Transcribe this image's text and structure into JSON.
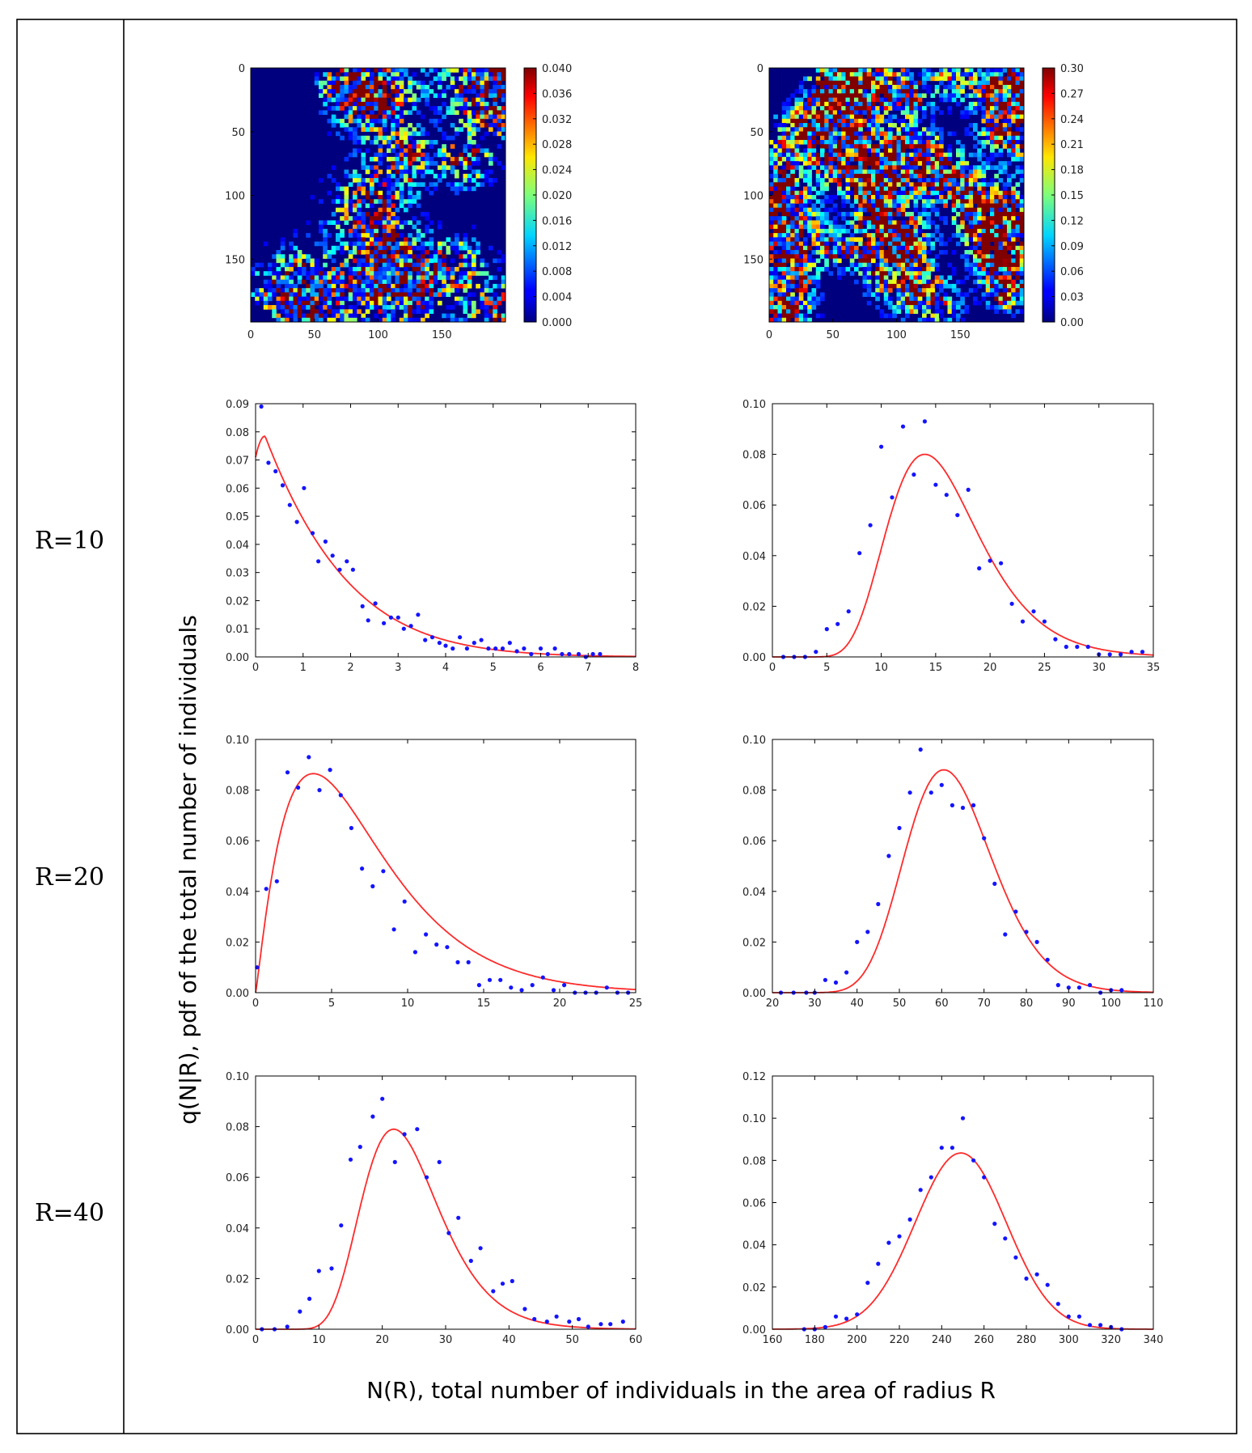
{
  "figure": {
    "ylabel": "q(N|R), pdf of the total number of individuals",
    "xlabel": "N(R), total number of individuals in the area of radius R",
    "row_labels": [
      "R=10",
      "R=20",
      "R=40"
    ]
  },
  "colors": {
    "fit_line": "#ff2a2a",
    "points": "#1414ff",
    "frame": "#000000"
  },
  "heatmaps": [
    {
      "name": "left",
      "axis_ticks": [
        0,
        50,
        100,
        150
      ],
      "colorbar_ticks": [
        "0.040",
        "0.036",
        "0.032",
        "0.028",
        "0.024",
        "0.020",
        "0.016",
        "0.012",
        "0.008",
        "0.004",
        "0.000"
      ],
      "seed": 7,
      "clustered": true
    },
    {
      "name": "right",
      "axis_ticks": [
        0,
        50,
        100,
        150
      ],
      "colorbar_ticks": [
        "0.30",
        "0.27",
        "0.24",
        "0.21",
        "0.18",
        "0.15",
        "0.12",
        "0.09",
        "0.06",
        "0.03",
        "0.00"
      ],
      "seed": 23,
      "clustered": false
    }
  ],
  "chart_data": [
    {
      "type": "scatter",
      "name": "R10-left",
      "xlim": [
        0,
        8
      ],
      "ylim": [
        0,
        0.09
      ],
      "xticks": [
        0,
        1,
        2,
        3,
        4,
        5,
        6,
        7,
        8
      ],
      "yticks": [
        "0.00",
        "0.01",
        "0.02",
        "0.03",
        "0.04",
        "0.05",
        "0.06",
        "0.07",
        "0.08",
        "0.09"
      ],
      "points": [
        [
          0.12,
          0.089
        ],
        [
          0.27,
          0.069
        ],
        [
          0.42,
          0.066
        ],
        [
          0.57,
          0.061
        ],
        [
          0.72,
          0.054
        ],
        [
          0.87,
          0.048
        ],
        [
          1.02,
          0.06
        ],
        [
          1.2,
          0.044
        ],
        [
          1.32,
          0.034
        ],
        [
          1.47,
          0.041
        ],
        [
          1.62,
          0.036
        ],
        [
          1.77,
          0.031
        ],
        [
          1.92,
          0.034
        ],
        [
          2.05,
          0.031
        ],
        [
          2.25,
          0.018
        ],
        [
          2.37,
          0.013
        ],
        [
          2.52,
          0.019
        ],
        [
          2.7,
          0.012
        ],
        [
          2.85,
          0.014
        ],
        [
          3.0,
          0.014
        ],
        [
          3.12,
          0.01
        ],
        [
          3.27,
          0.011
        ],
        [
          3.42,
          0.015
        ],
        [
          3.57,
          0.006
        ],
        [
          3.72,
          0.007
        ],
        [
          3.87,
          0.005
        ],
        [
          4.0,
          0.004
        ],
        [
          4.15,
          0.003
        ],
        [
          4.3,
          0.007
        ],
        [
          4.45,
          0.003
        ],
        [
          4.6,
          0.005
        ],
        [
          4.75,
          0.006
        ],
        [
          4.9,
          0.003
        ],
        [
          5.05,
          0.003
        ],
        [
          5.2,
          0.003
        ],
        [
          5.35,
          0.005
        ],
        [
          5.5,
          0.002
        ],
        [
          5.65,
          0.003
        ],
        [
          5.8,
          0.001
        ],
        [
          6.0,
          0.003
        ],
        [
          6.15,
          0.001
        ],
        [
          6.3,
          0.003
        ],
        [
          6.45,
          0.001
        ],
        [
          6.6,
          0.001
        ],
        [
          6.8,
          0.001
        ],
        [
          6.95,
          0.0
        ],
        [
          7.1,
          0.001
        ],
        [
          7.25,
          0.001
        ]
      ],
      "fit": {
        "kind": "skewpeak",
        "peak_x": 0.2,
        "peak_y": 0.0785,
        "left_y0": 0.071,
        "decay": 0.6
      }
    },
    {
      "type": "scatter",
      "name": "R10-right",
      "xlim": [
        0,
        35
      ],
      "ylim": [
        0,
        0.1
      ],
      "xticks": [
        0,
        5,
        10,
        15,
        20,
        25,
        30,
        35
      ],
      "yticks": [
        "0.00",
        "0.02",
        "0.04",
        "0.06",
        "0.08",
        "0.10"
      ],
      "points": [
        [
          1,
          0.0
        ],
        [
          2,
          0.0
        ],
        [
          3,
          0.0
        ],
        [
          4,
          0.002
        ],
        [
          5,
          0.011
        ],
        [
          6,
          0.013
        ],
        [
          7,
          0.018
        ],
        [
          8,
          0.041
        ],
        [
          9,
          0.052
        ],
        [
          10,
          0.083
        ],
        [
          11,
          0.063
        ],
        [
          12,
          0.091
        ],
        [
          13,
          0.072
        ],
        [
          14,
          0.093
        ],
        [
          15,
          0.068
        ],
        [
          16,
          0.064
        ],
        [
          17,
          0.056
        ],
        [
          18,
          0.066
        ],
        [
          19,
          0.035
        ],
        [
          20,
          0.038
        ],
        [
          21,
          0.037
        ],
        [
          22,
          0.021
        ],
        [
          23,
          0.014
        ],
        [
          24,
          0.018
        ],
        [
          25,
          0.014
        ],
        [
          26,
          0.007
        ],
        [
          27,
          0.004
        ],
        [
          28,
          0.004
        ],
        [
          29,
          0.004
        ],
        [
          30,
          0.001
        ],
        [
          31,
          0.001
        ],
        [
          32,
          0.001
        ],
        [
          33,
          0.002
        ],
        [
          34,
          0.002
        ]
      ],
      "fit": {
        "kind": "lognorm",
        "mode": 14.0,
        "peak_y": 0.08,
        "sigma": 0.3
      }
    },
    {
      "type": "scatter",
      "name": "R20-left",
      "xlim": [
        0,
        25
      ],
      "ylim": [
        0,
        0.1
      ],
      "xticks": [
        0,
        5,
        10,
        15,
        20,
        25
      ],
      "yticks": [
        "0.00",
        "0.02",
        "0.04",
        "0.06",
        "0.08",
        "0.10"
      ],
      "points": [
        [
          0.1,
          0.01
        ],
        [
          0.7,
          0.041
        ],
        [
          1.4,
          0.044
        ],
        [
          2.1,
          0.087
        ],
        [
          2.8,
          0.081
        ],
        [
          3.5,
          0.093
        ],
        [
          4.2,
          0.08
        ],
        [
          4.9,
          0.088
        ],
        [
          5.6,
          0.078
        ],
        [
          6.3,
          0.065
        ],
        [
          7.0,
          0.049
        ],
        [
          7.7,
          0.042
        ],
        [
          8.4,
          0.048
        ],
        [
          9.1,
          0.025
        ],
        [
          9.8,
          0.036
        ],
        [
          10.5,
          0.016
        ],
        [
          11.2,
          0.023
        ],
        [
          11.9,
          0.019
        ],
        [
          12.6,
          0.018
        ],
        [
          13.3,
          0.012
        ],
        [
          14.0,
          0.012
        ],
        [
          14.7,
          0.003
        ],
        [
          15.4,
          0.005
        ],
        [
          16.1,
          0.005
        ],
        [
          16.8,
          0.002
        ],
        [
          17.5,
          0.001
        ],
        [
          18.2,
          0.003
        ],
        [
          18.9,
          0.006
        ],
        [
          19.6,
          0.001
        ],
        [
          20.3,
          0.003
        ],
        [
          21.0,
          0.0
        ],
        [
          21.7,
          0.0
        ],
        [
          22.4,
          0.0
        ],
        [
          23.1,
          0.002
        ],
        [
          23.8,
          0.0
        ],
        [
          24.5,
          0.0
        ]
      ],
      "fit": {
        "kind": "gamma",
        "mode": 3.8,
        "peak_y": 0.0865,
        "shape": 2.15
      }
    },
    {
      "type": "scatter",
      "name": "R20-right",
      "xlim": [
        20,
        110
      ],
      "ylim": [
        0,
        0.1
      ],
      "xticks": [
        20,
        30,
        40,
        50,
        60,
        70,
        80,
        90,
        100,
        110
      ],
      "yticks": [
        "0.00",
        "0.02",
        "0.04",
        "0.06",
        "0.08",
        "0.10"
      ],
      "points": [
        [
          22,
          0.0
        ],
        [
          25,
          0.0
        ],
        [
          28,
          0.0
        ],
        [
          30,
          0.0
        ],
        [
          32.5,
          0.005
        ],
        [
          35,
          0.004
        ],
        [
          37.5,
          0.008
        ],
        [
          40,
          0.02
        ],
        [
          42.5,
          0.024
        ],
        [
          45,
          0.035
        ],
        [
          47.5,
          0.054
        ],
        [
          50,
          0.065
        ],
        [
          52.5,
          0.079
        ],
        [
          55,
          0.096
        ],
        [
          57.5,
          0.079
        ],
        [
          60,
          0.082
        ],
        [
          62.5,
          0.074
        ],
        [
          65,
          0.073
        ],
        [
          67.5,
          0.074
        ],
        [
          70,
          0.061
        ],
        [
          72.5,
          0.043
        ],
        [
          75,
          0.023
        ],
        [
          77.5,
          0.032
        ],
        [
          80,
          0.024
        ],
        [
          82.5,
          0.02
        ],
        [
          85,
          0.013
        ],
        [
          87.5,
          0.003
        ],
        [
          90,
          0.002
        ],
        [
          92.5,
          0.002
        ],
        [
          95,
          0.003
        ],
        [
          97.5,
          0.0
        ],
        [
          100,
          0.001
        ],
        [
          102.5,
          0.001
        ]
      ],
      "fit": {
        "kind": "lognorm",
        "mode": 60.5,
        "peak_y": 0.088,
        "sigma": 0.17
      }
    },
    {
      "type": "scatter",
      "name": "R40-left",
      "xlim": [
        0,
        60
      ],
      "ylim": [
        0,
        0.1
      ],
      "xticks": [
        0,
        10,
        20,
        30,
        40,
        50,
        60
      ],
      "yticks": [
        "0.00",
        "0.02",
        "0.04",
        "0.06",
        "0.08",
        "0.10"
      ],
      "points": [
        [
          1,
          0.0
        ],
        [
          3,
          0.0
        ],
        [
          5,
          0.001
        ],
        [
          7,
          0.007
        ],
        [
          8.5,
          0.012
        ],
        [
          10,
          0.023
        ],
        [
          12,
          0.024
        ],
        [
          13.5,
          0.041
        ],
        [
          15,
          0.067
        ],
        [
          16.5,
          0.072
        ],
        [
          18.5,
          0.084
        ],
        [
          20,
          0.091
        ],
        [
          22,
          0.066
        ],
        [
          23.5,
          0.077
        ],
        [
          25.5,
          0.079
        ],
        [
          27,
          0.06
        ],
        [
          29,
          0.066
        ],
        [
          30.5,
          0.038
        ],
        [
          32,
          0.044
        ],
        [
          34,
          0.027
        ],
        [
          35.5,
          0.032
        ],
        [
          37.5,
          0.015
        ],
        [
          39,
          0.018
        ],
        [
          40.5,
          0.019
        ],
        [
          42.5,
          0.008
        ],
        [
          44,
          0.004
        ],
        [
          46,
          0.003
        ],
        [
          47.5,
          0.005
        ],
        [
          49.5,
          0.003
        ],
        [
          51,
          0.004
        ],
        [
          52.5,
          0.001
        ],
        [
          54.5,
          0.002
        ],
        [
          56,
          0.002
        ],
        [
          58,
          0.003
        ]
      ],
      "fit": {
        "kind": "lognorm",
        "mode": 21.8,
        "peak_y": 0.079,
        "sigma": 0.28
      }
    },
    {
      "type": "scatter",
      "name": "R40-right",
      "xlim": [
        160,
        340
      ],
      "ylim": [
        0,
        0.12
      ],
      "xticks": [
        160,
        180,
        200,
        220,
        240,
        260,
        280,
        300,
        320,
        340
      ],
      "yticks": [
        "0.00",
        "0.02",
        "0.04",
        "0.06",
        "0.08",
        "0.10",
        "0.12"
      ],
      "points": [
        [
          175,
          0.0
        ],
        [
          180,
          0.0
        ],
        [
          185,
          0.001
        ],
        [
          190,
          0.006
        ],
        [
          195,
          0.005
        ],
        [
          200,
          0.007
        ],
        [
          205,
          0.022
        ],
        [
          210,
          0.031
        ],
        [
          215,
          0.041
        ],
        [
          220,
          0.044
        ],
        [
          225,
          0.052
        ],
        [
          230,
          0.066
        ],
        [
          235,
          0.072
        ],
        [
          240,
          0.086
        ],
        [
          245,
          0.086
        ],
        [
          250,
          0.1
        ],
        [
          255,
          0.08
        ],
        [
          260,
          0.072
        ],
        [
          265,
          0.05
        ],
        [
          270,
          0.043
        ],
        [
          275,
          0.034
        ],
        [
          280,
          0.024
        ],
        [
          285,
          0.026
        ],
        [
          290,
          0.021
        ],
        [
          295,
          0.012
        ],
        [
          300,
          0.006
        ],
        [
          305,
          0.006
        ],
        [
          310,
          0.002
        ],
        [
          315,
          0.002
        ],
        [
          320,
          0.001
        ],
        [
          325,
          0.0
        ]
      ],
      "fit": {
        "kind": "gauss",
        "mu": 249,
        "peak_y": 0.0835,
        "sd": 21.5
      }
    }
  ]
}
